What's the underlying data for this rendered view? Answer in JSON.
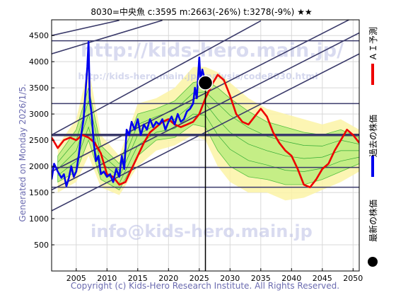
{
  "chart_data": {
    "type": "line",
    "title": "8030=中央魚 c:3595 m:2663(-26%) t:3278(-9%) ★★",
    "side_label": "Generated on Monday 2026/1/5.",
    "copyright": "Copyright (c) Kids-Hero Research Institute. All Rights Reserved.",
    "watermarks": [
      "http://kids-hero.main.jp/",
      "http://kids-hero.main.jp/analysis/code8030.html",
      "info@kids-hero.main.jp"
    ],
    "xlim": [
      2001,
      2051
    ],
    "ylim": [
      0,
      4800
    ],
    "x_ticks": [
      2005,
      2010,
      2015,
      2020,
      2025,
      2030,
      2035,
      2040,
      2045,
      2050
    ],
    "y_ticks": [
      500,
      1000,
      1500,
      2000,
      2500,
      3000,
      3500,
      4000,
      4500
    ],
    "grid": true,
    "current_x": 2026,
    "latest_point": {
      "x": 2026.0,
      "y": 3595
    },
    "legend": [
      {
        "label": "ＡＩ予測",
        "color": "#ee0000",
        "kind": "line"
      },
      {
        "label": "過去の株価",
        "color": "#0000ee",
        "kind": "line"
      },
      {
        "label": "最新の株価",
        "color": "#000000",
        "kind": "dot"
      }
    ],
    "horizontal_lines": [
      {
        "y": 4400,
        "color": "#3a3a6a",
        "width": 1.5
      },
      {
        "y": 3200,
        "color": "#3a3a6a",
        "width": 1.5
      },
      {
        "y": 2600,
        "color": "#3a3a6a",
        "width": 3.5
      },
      {
        "y": 1980,
        "color": "#3a3a6a",
        "width": 1.5
      },
      {
        "y": 1600,
        "color": "#3a3a6a",
        "width": 1.5
      }
    ],
    "trend_lines": [
      {
        "x": [
          2001,
          2051
        ],
        "y": [
          1150,
          4150
        ]
      },
      {
        "x": [
          2001,
          2051
        ],
        "y": [
          1550,
          4550
        ]
      },
      {
        "x": [
          2001,
          2051
        ],
        "y": [
          1900,
          4900
        ]
      },
      {
        "x": [
          2001,
          2035
        ],
        "y": [
          2600,
          4780
        ]
      },
      {
        "x": [
          2001,
          2019
        ],
        "y": [
          4150,
          4790
        ]
      },
      {
        "x": [
          2001,
          2012
        ],
        "y": [
          4500,
          4790
        ]
      }
    ],
    "band_outer": {
      "x": [
        2002,
        2005,
        2007,
        2009,
        2012,
        2015,
        2018,
        2021,
        2024,
        2026,
        2028,
        2030,
        2033,
        2036,
        2039,
        2042,
        2045,
        2048,
        2051
      ],
      "upper": [
        2400,
        2900,
        3900,
        2600,
        2200,
        3200,
        3300,
        3500,
        3900,
        3900,
        3800,
        3600,
        3300,
        3100,
        3000,
        2900,
        2800,
        2900,
        2700
      ],
      "lower": [
        1500,
        1700,
        2200,
        1600,
        1450,
        2000,
        2300,
        2400,
        2600,
        2500,
        2000,
        1700,
        1500,
        1500,
        1350,
        1400,
        1550,
        1700,
        1900
      ]
    },
    "band_inner": {
      "x": [
        2002,
        2005,
        2007,
        2009,
        2012,
        2015,
        2018,
        2021,
        2024,
        2026,
        2028,
        2030,
        2033,
        2036,
        2039,
        2042,
        2045,
        2048,
        2051
      ],
      "upper": [
        2200,
        2700,
        3500,
        2400,
        2050,
        3000,
        3100,
        3250,
        3600,
        3650,
        3500,
        3300,
        3050,
        2850,
        2750,
        2650,
        2600,
        2700,
        2550
      ],
      "lower": [
        1700,
        1900,
        2500,
        1750,
        1550,
        2200,
        2500,
        2550,
        2800,
        2750,
        2300,
        2000,
        1800,
        1750,
        1650,
        1650,
        1750,
        1900,
        2050
      ]
    },
    "series": [
      {
        "name": "過去の株価",
        "color": "#0000ee",
        "x": [
          2001,
          2001.4,
          2002,
          2002.6,
          2003,
          2003.4,
          2003.8,
          2004.2,
          2004.6,
          2005,
          2005.4,
          2005.8,
          2006.2,
          2006.5,
          2006.8,
          2007.0,
          2007.2,
          2007.5,
          2007.8,
          2008.2,
          2008.6,
          2009,
          2009.5,
          2010,
          2010.5,
          2011,
          2011.5,
          2012,
          2012.4,
          2012.8,
          2013.2,
          2013.6,
          2014,
          2014.5,
          2015,
          2015.5,
          2016,
          2016.5,
          2017,
          2017.5,
          2018,
          2018.5,
          2019,
          2019.5,
          2020,
          2020.5,
          2021,
          2021.5,
          2022,
          2022.5,
          2023,
          2023.5,
          2024,
          2024.3,
          2024.6,
          2024.8,
          2025.0,
          2025.2,
          2025.5,
          2025.8,
          2026
        ],
        "y": [
          1750,
          2050,
          1900,
          1780,
          1850,
          1620,
          1780,
          2000,
          1800,
          1900,
          2200,
          2600,
          2900,
          3400,
          3900,
          4380,
          3300,
          3000,
          2500,
          2100,
          2200,
          1850,
          1900,
          1800,
          1850,
          1700,
          1950,
          1800,
          2200,
          1950,
          2700,
          2600,
          2850,
          2700,
          2900,
          2600,
          2800,
          2700,
          2900,
          2750,
          2850,
          2800,
          2900,
          2700,
          2850,
          2950,
          2800,
          3000,
          2850,
          2900,
          3050,
          3100,
          3200,
          3500,
          3300,
          3700,
          4080,
          3650,
          3850,
          3700,
          3595
        ]
      },
      {
        "name": "ＡＩ予測",
        "color": "#ee0000",
        "x": [
          2001,
          2002,
          2003,
          2004,
          2005,
          2006,
          2007,
          2008,
          2009,
          2010,
          2011,
          2012,
          2013,
          2014,
          2015,
          2016,
          2017,
          2018,
          2019,
          2020,
          2021,
          2022,
          2023,
          2024,
          2025,
          2026,
          2027,
          2028,
          2029,
          2030,
          2031,
          2032,
          2033,
          2034,
          2035,
          2036,
          2037,
          2038,
          2039,
          2040,
          2041,
          2042,
          2043,
          2044,
          2045,
          2046,
          2047,
          2048,
          2049,
          2050,
          2051
        ],
        "y": [
          2550,
          2350,
          2500,
          2550,
          2500,
          2600,
          2550,
          2450,
          2250,
          1850,
          1800,
          1650,
          1700,
          1950,
          2200,
          2450,
          2650,
          2750,
          2850,
          2900,
          2800,
          2750,
          2800,
          2850,
          3000,
          3300,
          3550,
          3750,
          3650,
          3350,
          3000,
          2850,
          2800,
          2950,
          3100,
          2950,
          2650,
          2450,
          2300,
          2200,
          1950,
          1650,
          1600,
          1750,
          1950,
          2050,
          2300,
          2500,
          2700,
          2600,
          2450
        ]
      }
    ]
  }
}
